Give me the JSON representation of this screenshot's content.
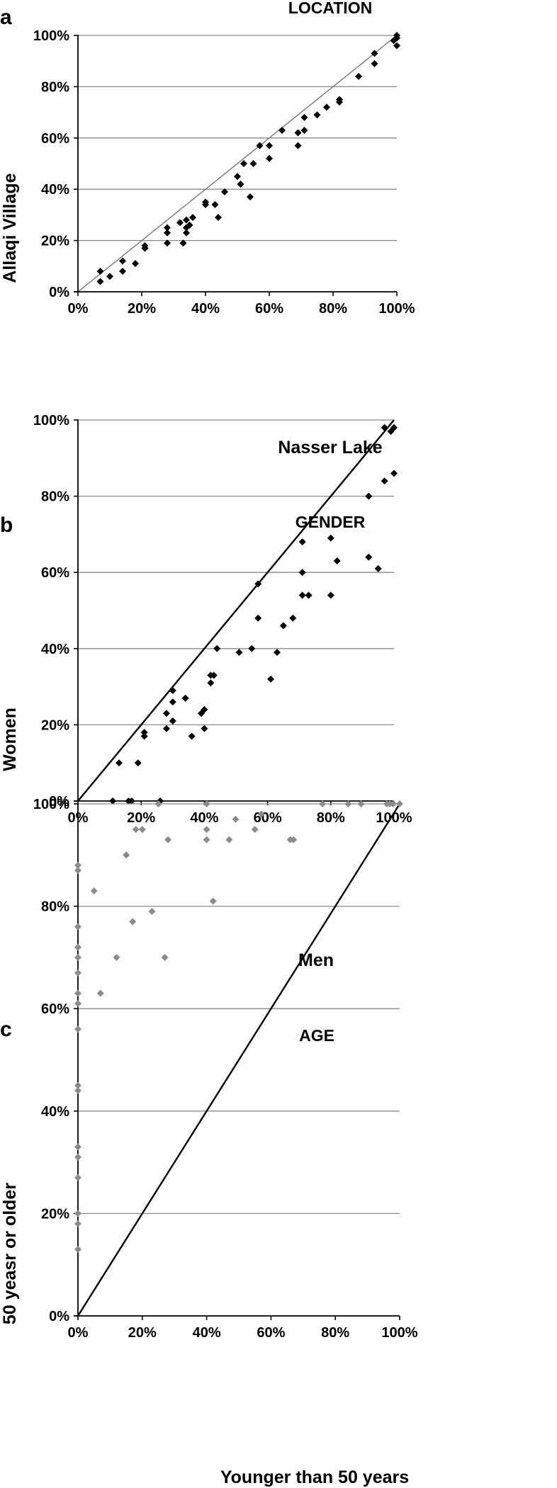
{
  "chart_data": [
    {
      "type": "scatter",
      "panel": "a",
      "title": "LOCATION",
      "xlabel": "Nasser Lake",
      "ylabel": "Allaqi Village",
      "xlim": [
        0,
        100
      ],
      "ylim": [
        0,
        100
      ],
      "x_ticks": [
        "0%",
        "20%",
        "40%",
        "60%",
        "80%",
        "100%"
      ],
      "y_ticks": [
        "0%",
        "20%",
        "40%",
        "60%",
        "80%",
        "100%"
      ],
      "grid": "horizontal",
      "reference_line": "y = x",
      "marker_color": "#000000",
      "line_color": "#777777",
      "points": [
        [
          7,
          8
        ],
        [
          7,
          4
        ],
        [
          10,
          6
        ],
        [
          14,
          12
        ],
        [
          14,
          8
        ],
        [
          18,
          11
        ],
        [
          21,
          18
        ],
        [
          21,
          17
        ],
        [
          28,
          25
        ],
        [
          28,
          23
        ],
        [
          28,
          19
        ],
        [
          32,
          27
        ],
        [
          33,
          19
        ],
        [
          34,
          25
        ],
        [
          34,
          23
        ],
        [
          34,
          28
        ],
        [
          35,
          26
        ],
        [
          36,
          29
        ],
        [
          40,
          35
        ],
        [
          40,
          34
        ],
        [
          43,
          34
        ],
        [
          44,
          29
        ],
        [
          46,
          39
        ],
        [
          50,
          45
        ],
        [
          51,
          42
        ],
        [
          52,
          50
        ],
        [
          54,
          37
        ],
        [
          55,
          50
        ],
        [
          57,
          57
        ],
        [
          60,
          57
        ],
        [
          60,
          52
        ],
        [
          64,
          63
        ],
        [
          69,
          62
        ],
        [
          69,
          57
        ],
        [
          71,
          63
        ],
        [
          71,
          68
        ],
        [
          75,
          69
        ],
        [
          78,
          72
        ],
        [
          82,
          74
        ],
        [
          82,
          75
        ],
        [
          88,
          84
        ],
        [
          93,
          93
        ],
        [
          93,
          89
        ],
        [
          99,
          98
        ],
        [
          100,
          100
        ],
        [
          100,
          99
        ],
        [
          100,
          96
        ]
      ]
    },
    {
      "type": "scatter",
      "panel": "b",
      "title": "GENDER",
      "xlabel": "Men",
      "ylabel": "Women",
      "xlim": [
        0,
        100
      ],
      "ylim": [
        0,
        100
      ],
      "x_ticks": [
        "0%",
        "20%",
        "40%",
        "60%",
        "80%",
        "100%"
      ],
      "y_ticks": [
        "0%",
        "20%",
        "40%",
        "60%",
        "80%",
        "100%"
      ],
      "grid": "horizontal",
      "reference_line": "y = x",
      "marker_color": "#000000",
      "line_color": "#000000",
      "points": [
        [
          11,
          0
        ],
        [
          13,
          10
        ],
        [
          16,
          0
        ],
        [
          17,
          0
        ],
        [
          19,
          10
        ],
        [
          21,
          17
        ],
        [
          21,
          18
        ],
        [
          26,
          0
        ],
        [
          28,
          19
        ],
        [
          28,
          23
        ],
        [
          30,
          21
        ],
        [
          30,
          26
        ],
        [
          30,
          29
        ],
        [
          34,
          27
        ],
        [
          36,
          17
        ],
        [
          39,
          23
        ],
        [
          40,
          19
        ],
        [
          40,
          24
        ],
        [
          42,
          31
        ],
        [
          42,
          33
        ],
        [
          43,
          33
        ],
        [
          44,
          40
        ],
        [
          51,
          39
        ],
        [
          55,
          40
        ],
        [
          57,
          48
        ],
        [
          57,
          57
        ],
        [
          61,
          32
        ],
        [
          63,
          39
        ],
        [
          65,
          46
        ],
        [
          68,
          48
        ],
        [
          71,
          54
        ],
        [
          71,
          60
        ],
        [
          71,
          68
        ],
        [
          73,
          54
        ],
        [
          80,
          54
        ],
        [
          80,
          69
        ],
        [
          82,
          63
        ],
        [
          92,
          64
        ],
        [
          92,
          80
        ],
        [
          95,
          61
        ],
        [
          97,
          84
        ],
        [
          97,
          98
        ],
        [
          99,
          97
        ],
        [
          100,
          98
        ],
        [
          100,
          86
        ]
      ]
    },
    {
      "type": "scatter",
      "panel": "c",
      "title": "AGE",
      "xlabel": "Younger than 50 years",
      "ylabel": "50 yeasr or older",
      "xlim": [
        0,
        100
      ],
      "ylim": [
        0,
        100
      ],
      "x_ticks": [
        "0%",
        "20%",
        "40%",
        "60%",
        "80%",
        "100%"
      ],
      "y_ticks": [
        "0%",
        "20%",
        "40%",
        "60%",
        "80%",
        "100%"
      ],
      "grid": "horizontal",
      "reference_line": "y = x",
      "marker_color": "#8c8c8c",
      "line_color": "#000000",
      "points": [
        [
          0,
          88
        ],
        [
          0,
          87
        ],
        [
          0,
          76
        ],
        [
          0,
          72
        ],
        [
          0,
          70
        ],
        [
          0,
          67
        ],
        [
          0,
          63
        ],
        [
          0,
          61
        ],
        [
          0,
          56
        ],
        [
          0,
          45
        ],
        [
          0,
          44
        ],
        [
          0,
          33
        ],
        [
          0,
          31
        ],
        [
          0,
          27
        ],
        [
          0,
          20
        ],
        [
          0,
          18
        ],
        [
          0,
          13
        ],
        [
          5,
          83
        ],
        [
          7,
          63
        ],
        [
          12,
          70
        ],
        [
          15,
          90
        ],
        [
          17,
          77
        ],
        [
          18,
          95
        ],
        [
          20,
          95
        ],
        [
          23,
          79
        ],
        [
          25,
          100
        ],
        [
          27,
          70
        ],
        [
          28,
          93
        ],
        [
          40,
          100
        ],
        [
          40,
          95
        ],
        [
          40,
          93
        ],
        [
          42,
          81
        ],
        [
          47,
          93
        ],
        [
          49,
          97
        ],
        [
          55,
          95
        ],
        [
          57,
          98
        ],
        [
          66,
          93
        ],
        [
          67,
          93
        ],
        [
          76,
          100
        ],
        [
          84,
          100
        ],
        [
          88,
          100
        ],
        [
          96,
          100
        ],
        [
          97,
          100
        ],
        [
          98,
          100
        ],
        [
          100,
          100
        ]
      ]
    }
  ]
}
